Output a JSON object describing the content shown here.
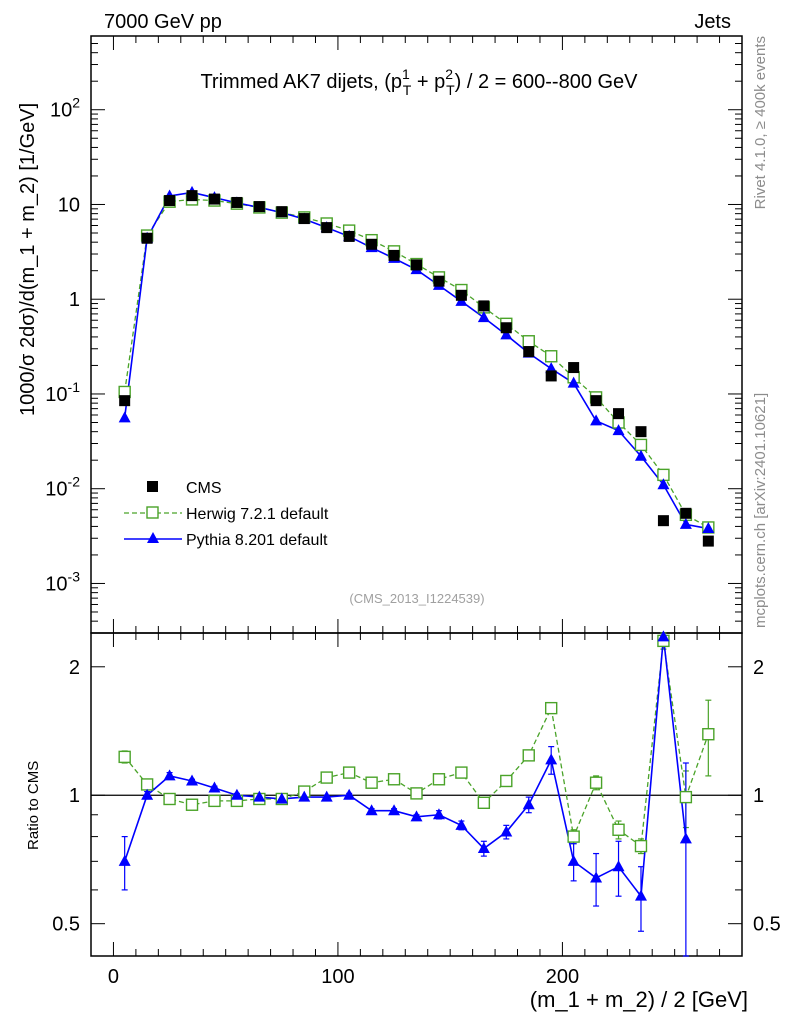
{
  "header": {
    "left": "7000 GeV pp",
    "right": "Jets"
  },
  "side_labels": {
    "top": "Rivet 4.1.0, ≥ 400k events",
    "bottom": "mcplots.cern.ch [arXiv:2401.10621]"
  },
  "chart_data": [
    {
      "type": "line",
      "yscale": "log",
      "title": "Trimmed AK7 dijets, (p_T^1 + p_T^2) / 2 = 600--800 GeV",
      "ylabel": "1000/σ   2dσ)/d(m_1 + m_2) [1/GeV]",
      "xlabel": "(m_1 + m_2) / 2 [GeV]",
      "annotation": "(CMS_2013_I1224539)",
      "xlim": [
        -10,
        280
      ],
      "ylim": [
        0.0003,
        600
      ],
      "y_ticks": [
        {
          "v": 0.001,
          "m": "10",
          "e": "-3"
        },
        {
          "v": 0.01,
          "m": "10",
          "e": "-2"
        },
        {
          "v": 0.1,
          "m": "10",
          "e": "-1"
        },
        {
          "v": 1,
          "m": "1",
          "e": ""
        },
        {
          "v": 10,
          "m": "10",
          "e": ""
        },
        {
          "v": 100,
          "m": "10",
          "e": "2"
        }
      ],
      "x": [
        5,
        15,
        25,
        35,
        45,
        55,
        65,
        75,
        85,
        95,
        105,
        115,
        125,
        135,
        145,
        155,
        165,
        175,
        185,
        195,
        205,
        215,
        225,
        235,
        245,
        255,
        265
      ],
      "series": [
        {
          "name": "CMS",
          "style": "points",
          "color": "#000000",
          "values": [
            0.085,
            4.4,
            11.0,
            12.4,
            11.4,
            10.5,
            9.5,
            8.4,
            7.1,
            5.7,
            4.6,
            3.8,
            2.9,
            2.3,
            1.55,
            1.1,
            0.85,
            0.5,
            0.28,
            0.155,
            0.19,
            0.085,
            0.062,
            0.04,
            0.0046,
            0.0055,
            0.0028
          ]
        },
        {
          "name": "Herwig 7.2.1 default",
          "style": "dashed-open-square",
          "color": "#4aa329",
          "values": [
            0.105,
            4.7,
            10.7,
            11.3,
            11.0,
            10.2,
            9.3,
            8.2,
            7.3,
            6.3,
            5.3,
            4.2,
            3.2,
            2.35,
            1.7,
            1.25,
            0.82,
            0.55,
            0.36,
            0.25,
            0.15,
            0.092,
            0.05,
            0.029,
            0.014,
            0.0053,
            0.0039
          ]
        },
        {
          "name": "Pythia 8.201 default",
          "style": "solid-filled-triangle",
          "color": "#0000ff",
          "values": [
            0.056,
            4.4,
            12.3,
            13.4,
            11.8,
            10.4,
            9.3,
            8.2,
            7.0,
            5.7,
            4.6,
            3.5,
            2.7,
            2.05,
            1.4,
            0.95,
            0.64,
            0.42,
            0.27,
            0.185,
            0.13,
            0.052,
            0.041,
            0.022,
            0.011,
            0.0042,
            0.0038
          ]
        }
      ],
      "legend": [
        "CMS",
        "Herwig 7.2.1 default",
        "Pythia 8.201 default"
      ]
    },
    {
      "type": "line",
      "yscale": "log",
      "ylabel": "Ratio to CMS",
      "xlabel": "(m_1 + m_2) / 2 [GeV]",
      "ylim": [
        0.42,
        2.4
      ],
      "y_ticks": [
        0.5,
        1,
        2
      ],
      "x_ticks": [
        0,
        100,
        200
      ],
      "reference": 1,
      "x": [
        5,
        15,
        25,
        35,
        45,
        55,
        65,
        75,
        85,
        95,
        105,
        115,
        125,
        135,
        145,
        155,
        165,
        175,
        185,
        195,
        205,
        215,
        225,
        235,
        245,
        255,
        265
      ],
      "series": [
        {
          "name": "Herwig 7.2.1 default",
          "color": "#4aa329",
          "values": [
            1.23,
            1.06,
            0.98,
            0.95,
            0.97,
            0.97,
            0.98,
            0.98,
            1.02,
            1.1,
            1.13,
            1.07,
            1.09,
            1.01,
            1.09,
            1.13,
            0.96,
            1.08,
            1.24,
            1.6,
            0.8,
            1.07,
            0.83,
            0.76,
            2.3,
            0.99,
            1.39
          ],
          "errors": [
            0.04,
            0.02,
            0.02,
            0.01,
            0.01,
            0.01,
            0.01,
            0.01,
            0.01,
            0.01,
            0.01,
            0.01,
            0.01,
            0.02,
            0.02,
            0.02,
            0.02,
            0.02,
            0.03,
            0.04,
            0.03,
            0.04,
            0.04,
            0.03,
            0.1,
            0.15,
            0.28
          ]
        },
        {
          "name": "Pythia 8.201 default",
          "color": "#0000ff",
          "values": [
            0.7,
            1.0,
            1.11,
            1.08,
            1.04,
            1.0,
            0.99,
            0.98,
            0.99,
            0.99,
            1.0,
            0.92,
            0.92,
            0.89,
            0.9,
            0.85,
            0.75,
            0.82,
            0.95,
            1.21,
            0.7,
            0.64,
            0.68,
            0.58,
            2.35,
            0.79,
            null
          ],
          "errors": [
            0.1,
            0.02,
            0.02,
            0.01,
            0.01,
            0.01,
            0.01,
            0.01,
            0.01,
            0.01,
            0.01,
            0.01,
            0.01,
            0.01,
            0.02,
            0.02,
            0.03,
            0.03,
            0.04,
            0.09,
            0.07,
            0.09,
            0.1,
            0.1,
            0.02,
            0.4,
            null
          ]
        }
      ]
    }
  ]
}
